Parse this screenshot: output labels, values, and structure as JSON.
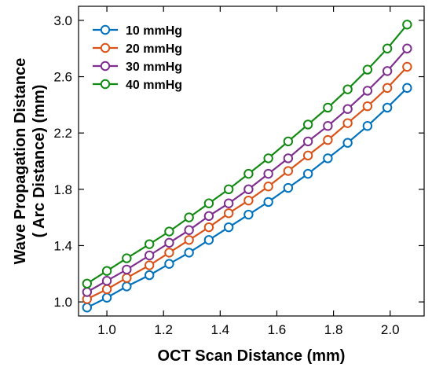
{
  "chart_data": {
    "type": "line",
    "xlabel": "OCT Scan Distance (mm)",
    "ylabel_lines": [
      "Wave Propagation Distance",
      "( Arc Distance) (mm)"
    ],
    "xlim": [
      0.9,
      2.12
    ],
    "ylim": [
      0.9,
      3.1
    ],
    "xticks": [
      {
        "value": 1.0,
        "label": "1.0"
      },
      {
        "value": 1.2,
        "label": "1.2"
      },
      {
        "value": 1.4,
        "label": "1.4"
      },
      {
        "value": 1.6,
        "label": "1.6"
      },
      {
        "value": 1.8,
        "label": "1.8"
      },
      {
        "value": 2.0,
        "label": "2.0"
      }
    ],
    "yticks": [
      {
        "value": 1.0,
        "label": "1.0"
      },
      {
        "value": 1.4,
        "label": "1.4"
      },
      {
        "value": 1.8,
        "label": "1.8"
      },
      {
        "value": 2.2,
        "label": "2.2"
      },
      {
        "value": 2.6,
        "label": "2.6"
      },
      {
        "value": 3.0,
        "label": "3.0"
      }
    ],
    "grid": false,
    "legend_position": "top-left",
    "x": [
      0.93,
      1.0,
      1.07,
      1.15,
      1.22,
      1.29,
      1.36,
      1.43,
      1.5,
      1.57,
      1.64,
      1.71,
      1.78,
      1.85,
      1.92,
      1.99,
      2.06
    ],
    "series": [
      {
        "name": "10 mmHg",
        "color": "#0072BD",
        "values": [
          0.96,
          1.03,
          1.11,
          1.19,
          1.27,
          1.35,
          1.44,
          1.53,
          1.62,
          1.71,
          1.81,
          1.91,
          2.02,
          2.13,
          2.25,
          2.38,
          2.52
        ]
      },
      {
        "name": "20 mmHg",
        "color": "#D95319",
        "values": [
          1.02,
          1.09,
          1.17,
          1.26,
          1.35,
          1.44,
          1.53,
          1.63,
          1.72,
          1.82,
          1.93,
          2.04,
          2.15,
          2.27,
          2.39,
          2.52,
          2.67
        ]
      },
      {
        "name": "30 mmHg",
        "color": "#7E2F8E",
        "values": [
          1.07,
          1.15,
          1.23,
          1.33,
          1.42,
          1.51,
          1.61,
          1.7,
          1.8,
          1.91,
          2.02,
          2.14,
          2.25,
          2.37,
          2.5,
          2.64,
          2.8
        ]
      },
      {
        "name": "40 mmHg",
        "color": "#138A13",
        "values": [
          1.13,
          1.22,
          1.31,
          1.41,
          1.5,
          1.6,
          1.7,
          1.8,
          1.91,
          2.02,
          2.14,
          2.26,
          2.38,
          2.51,
          2.65,
          2.8,
          2.97
        ]
      }
    ]
  }
}
